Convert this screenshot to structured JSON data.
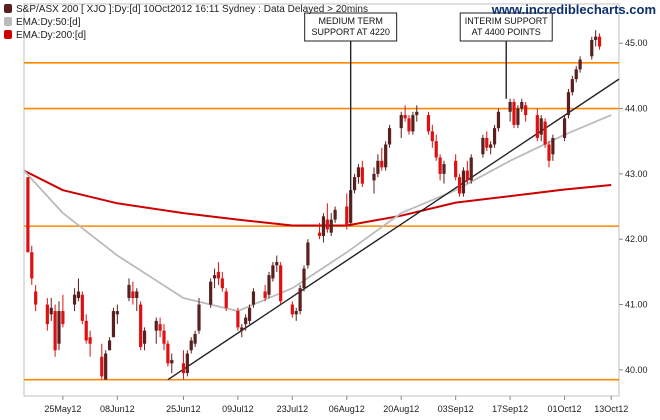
{
  "website": "www.incrediblecharts.com",
  "legend": {
    "price": {
      "label": "S&P/ASX 200 [ XJO ]:Dy:[d]  10Oct2012 16:11 Sydney : Data Delayed > 20mins",
      "color": "#5a1f1f"
    },
    "ema50": {
      "label": "EMA:Dy:50:[d]",
      "color": "#bbbbbb"
    },
    "ema200": {
      "label": "EMA:Dy:200:[d]",
      "color": "#cc0000"
    }
  },
  "annotations": [
    {
      "lines": [
        "MEDIUM TERM",
        "SUPPORT AT 4220"
      ],
      "x": "07Aug12",
      "y_target": 4265
    },
    {
      "lines": [
        "INTERIM SUPPORT",
        "AT 4400 POINTS"
      ],
      "x": "16Sep12",
      "y_target": 4415
    }
  ],
  "chart_data": {
    "type": "candlestick",
    "title": "S&P/ASX 200 [ XJO ]:Dy:[d]  10Oct2012 16:11 Sydney : Data Delayed > 20mins",
    "x_axis": {
      "ticks": [
        "25May12",
        "08Jun12",
        "25Jun12",
        "09Jul12",
        "23Jul12",
        "06Aug12",
        "20Aug12",
        "03Sep12",
        "17Sep12",
        "01Oct12",
        "13Oct12"
      ],
      "range": [
        "15May12",
        "15Oct12"
      ]
    },
    "y_axis": {
      "ticks": [
        "40.00",
        "41.00",
        "42.00",
        "43.00",
        "44.00",
        "45.00"
      ],
      "scale_factor": 100,
      "range": [
        3960,
        4560
      ],
      "position": "right"
    },
    "horizontal_lines": [
      {
        "value": 3985,
        "color": "#ff8800"
      },
      {
        "value": 4220,
        "color": "#ff8800"
      },
      {
        "value": 4400,
        "color": "#ff8800"
      },
      {
        "value": 4470,
        "color": "#ff8800"
      }
    ],
    "trendline": {
      "from": {
        "x": "21Jun12",
        "y": 3985
      },
      "to": {
        "x": "15Oct12",
        "y": 4445
      },
      "color": "#222222"
    },
    "ema50": {
      "name": "EMA:Dy:50:[d]",
      "points": [
        [
          "15May12",
          4305
        ],
        [
          "25May12",
          4240
        ],
        [
          "08Jun12",
          4175
        ],
        [
          "25Jun12",
          4110
        ],
        [
          "09Jul12",
          4090
        ],
        [
          "23Jul12",
          4125
        ],
        [
          "06Aug12",
          4180
        ],
        [
          "20Aug12",
          4240
        ],
        [
          "03Sep12",
          4275
        ],
        [
          "17Sep12",
          4320
        ],
        [
          "01Oct12",
          4360
        ],
        [
          "13Oct12",
          4390
        ]
      ]
    },
    "ema200": {
      "name": "EMA:Dy:200:[d]",
      "points": [
        [
          "15May12",
          4305
        ],
        [
          "25May12",
          4275
        ],
        [
          "08Jun12",
          4255
        ],
        [
          "25Jun12",
          4240
        ],
        [
          "09Jul12",
          4230
        ],
        [
          "23Jul12",
          4221
        ],
        [
          "06Aug12",
          4221
        ],
        [
          "20Aug12",
          4236
        ],
        [
          "03Sep12",
          4256
        ],
        [
          "17Sep12",
          4266
        ],
        [
          "01Oct12",
          4276
        ],
        [
          "13Oct12",
          4283
        ]
      ]
    },
    "candles": [
      [
        "16May12",
        4295,
        4290,
        4180,
        4180
      ],
      [
        "17May12",
        4180,
        4190,
        4130,
        4140
      ],
      [
        "18May12",
        4120,
        4130,
        4090,
        4100
      ],
      [
        "21May12",
        4100,
        4110,
        4060,
        4070
      ],
      [
        "22May12",
        4085,
        4110,
        4075,
        4095
      ],
      [
        "23May12",
        4090,
        4100,
        4020,
        4030
      ],
      [
        "24May12",
        4040,
        4105,
        4030,
        4090
      ],
      [
        "25May12",
        4090,
        4115,
        4065,
        4070
      ],
      [
        "28May12",
        4100,
        4125,
        4090,
        4115
      ],
      [
        "29May12",
        4110,
        4140,
        4105,
        4120
      ],
      [
        "30May12",
        4115,
        4120,
        4070,
        4075
      ],
      [
        "31May12",
        4075,
        4085,
        4040,
        4045
      ],
      [
        "01Jun12",
        4050,
        4060,
        4020,
        4040
      ],
      [
        "04Jun12",
        4020,
        4040,
        3985,
        3990
      ],
      [
        "05Jun12",
        3985,
        4030,
        3985,
        4025
      ],
      [
        "06Jun12",
        4030,
        4050,
        4030,
        4045
      ],
      [
        "07Jun12",
        4050,
        4095,
        4050,
        4090
      ],
      [
        "08Jun12",
        4085,
        4100,
        4070,
        4090
      ],
      [
        "11Jun12",
        4110,
        4140,
        4105,
        4130
      ],
      [
        "12Jun12",
        4120,
        4135,
        4100,
        4110
      ],
      [
        "13Jun12",
        4110,
        4125,
        4090,
        4120
      ],
      [
        "14Jun12",
        4100,
        4105,
        4030,
        4035
      ],
      [
        "15Jun12",
        4040,
        4065,
        4030,
        4060
      ],
      [
        "18Jun12",
        4060,
        4080,
        4040,
        4075
      ],
      [
        "19Jun12",
        4070,
        4080,
        4050,
        4060
      ],
      [
        "20Jun12",
        4060,
        4070,
        4030,
        4040
      ],
      [
        "21Jun12",
        4040,
        4045,
        4005,
        4010
      ],
      [
        "22Jun12",
        4010,
        4025,
        3995,
        4015
      ],
      [
        "25Jun12",
        4010,
        4030,
        3985,
        3995
      ],
      [
        "26Jun12",
        3995,
        4030,
        3990,
        4025
      ],
      [
        "27Jun12",
        4030,
        4050,
        4025,
        4045
      ],
      [
        "28Jun12",
        4040,
        4060,
        4035,
        4055
      ],
      [
        "29Jun12",
        4060,
        4110,
        4055,
        4100
      ],
      [
        "02Jul12",
        4100,
        4140,
        4095,
        4135
      ],
      [
        "03Jul12",
        4140,
        4155,
        4125,
        4145
      ],
      [
        "04Jul12",
        4150,
        4165,
        4130,
        4140
      ],
      [
        "05Jul12",
        4140,
        4150,
        4120,
        4125
      ],
      [
        "06Jul12",
        4120,
        4125,
        4090,
        4095
      ],
      [
        "09Jul12",
        4090,
        4095,
        4060,
        4065
      ],
      [
        "10Jul12",
        4060,
        4070,
        4050,
        4065
      ],
      [
        "11Jul12",
        4070,
        4085,
        4060,
        4080
      ],
      [
        "12Jul12",
        4075,
        4100,
        4070,
        4095
      ],
      [
        "13Jul12",
        4100,
        4125,
        4095,
        4120
      ],
      [
        "16Jul12",
        4120,
        4130,
        4105,
        4110
      ],
      [
        "17Jul12",
        4115,
        4150,
        4110,
        4145
      ],
      [
        "18Jul12",
        4140,
        4165,
        4135,
        4160
      ],
      [
        "19Jul12",
        4160,
        4175,
        4150,
        4165
      ],
      [
        "20Jul12",
        4160,
        4165,
        4100,
        4105
      ],
      [
        "23Jul12",
        4100,
        4105,
        4080,
        4085
      ],
      [
        "24Jul12",
        4085,
        4095,
        4075,
        4090
      ],
      [
        "25Jul12",
        4090,
        4130,
        4085,
        4125
      ],
      [
        "26Jul12",
        4125,
        4160,
        4120,
        4155
      ],
      [
        "27Jul12",
        4160,
        4200,
        4155,
        4195
      ],
      [
        "30Jul12",
        4210,
        4225,
        4200,
        4205
      ],
      [
        "31Jul12",
        4205,
        4240,
        4195,
        4235
      ],
      [
        "01Aug12",
        4230,
        4255,
        4210,
        4215
      ],
      [
        "02Aug12",
        4210,
        4240,
        4205,
        4230
      ],
      [
        "03Aug12",
        4230,
        4250,
        4225,
        4245
      ],
      [
        "06Aug12",
        4250,
        4270,
        4215,
        4220
      ],
      [
        "07Aug12",
        4225,
        4280,
        4220,
        4275
      ],
      [
        "08Aug12",
        4275,
        4300,
        4270,
        4295
      ],
      [
        "09Aug12",
        4295,
        4315,
        4285,
        4310
      ],
      [
        "10Aug12",
        4310,
        4320,
        4280,
        4285
      ],
      [
        "13Aug12",
        4290,
        4310,
        4270,
        4300
      ],
      [
        "14Aug12",
        4300,
        4330,
        4295,
        4320
      ],
      [
        "15Aug12",
        4320,
        4340,
        4305,
        4310
      ],
      [
        "16Aug12",
        4310,
        4350,
        4305,
        4345
      ],
      [
        "17Aug12",
        4345,
        4375,
        4340,
        4370
      ],
      [
        "20Aug12",
        4370,
        4395,
        4355,
        4390
      ],
      [
        "21Aug12",
        4390,
        4405,
        4380,
        4385
      ],
      [
        "22Aug12",
        4385,
        4390,
        4360,
        4365
      ],
      [
        "23Aug12",
        4365,
        4395,
        4360,
        4390
      ],
      [
        "24Aug12",
        4390,
        4405,
        4380,
        4395
      ],
      [
        "27Aug12",
        4390,
        4395,
        4360,
        4365
      ],
      [
        "28Aug12",
        4365,
        4375,
        4340,
        4350
      ],
      [
        "29Aug12",
        4350,
        4360,
        4320,
        4325
      ],
      [
        "30Aug12",
        4325,
        4330,
        4290,
        4300
      ],
      [
        "31Aug12",
        4300,
        4320,
        4285,
        4315
      ],
      [
        "03Sep12",
        4320,
        4330,
        4290,
        4295
      ],
      [
        "04Sep12",
        4295,
        4300,
        4265,
        4270
      ],
      [
        "05Sep12",
        4270,
        4310,
        4265,
        4305
      ],
      [
        "06Sep12",
        4305,
        4320,
        4285,
        4290
      ],
      [
        "07Sep12",
        4290,
        4330,
        4285,
        4325
      ],
      [
        "10Sep12",
        4330,
        4360,
        4325,
        4355
      ],
      [
        "11Sep12",
        4355,
        4365,
        4335,
        4340
      ],
      [
        "12Sep12",
        4340,
        4350,
        4330,
        4345
      ],
      [
        "13Sep12",
        4345,
        4375,
        4340,
        4370
      ],
      [
        "14Sep12",
        4370,
        4400,
        4365,
        4395
      ],
      [
        "17Sep12",
        4395,
        4415,
        4380,
        4410
      ],
      [
        "18Sep12",
        4410,
        4415,
        4370,
        4375
      ],
      [
        "19Sep12",
        4375,
        4405,
        4370,
        4400
      ],
      [
        "20Sep12",
        4400,
        4415,
        4395,
        4410
      ],
      [
        "21Sep12",
        4405,
        4410,
        4380,
        4390
      ],
      [
        "24Sep12",
        4390,
        4400,
        4350,
        4355
      ],
      [
        "25Sep12",
        4360,
        4390,
        4350,
        4385
      ],
      [
        "26Sep12",
        4380,
        4385,
        4340,
        4345
      ],
      [
        "27Sep12",
        4345,
        4350,
        4310,
        4320
      ],
      [
        "28Sep12",
        4330,
        4360,
        4320,
        4355
      ],
      [
        "01Oct12",
        4355,
        4390,
        4350,
        4385
      ],
      [
        "02Oct12",
        4390,
        4430,
        4385,
        4425
      ],
      [
        "03Oct12",
        4425,
        4450,
        4420,
        4445
      ],
      [
        "04Oct12",
        4445,
        4465,
        4440,
        4460
      ],
      [
        "05Oct12",
        4460,
        4480,
        4455,
        4475
      ],
      [
        "08Oct12",
        4480,
        4510,
        4475,
        4505
      ],
      [
        "09Oct12",
        4505,
        4520,
        4495,
        4510
      ],
      [
        "10Oct12",
        4510,
        4515,
        4490,
        4495
      ]
    ]
  }
}
